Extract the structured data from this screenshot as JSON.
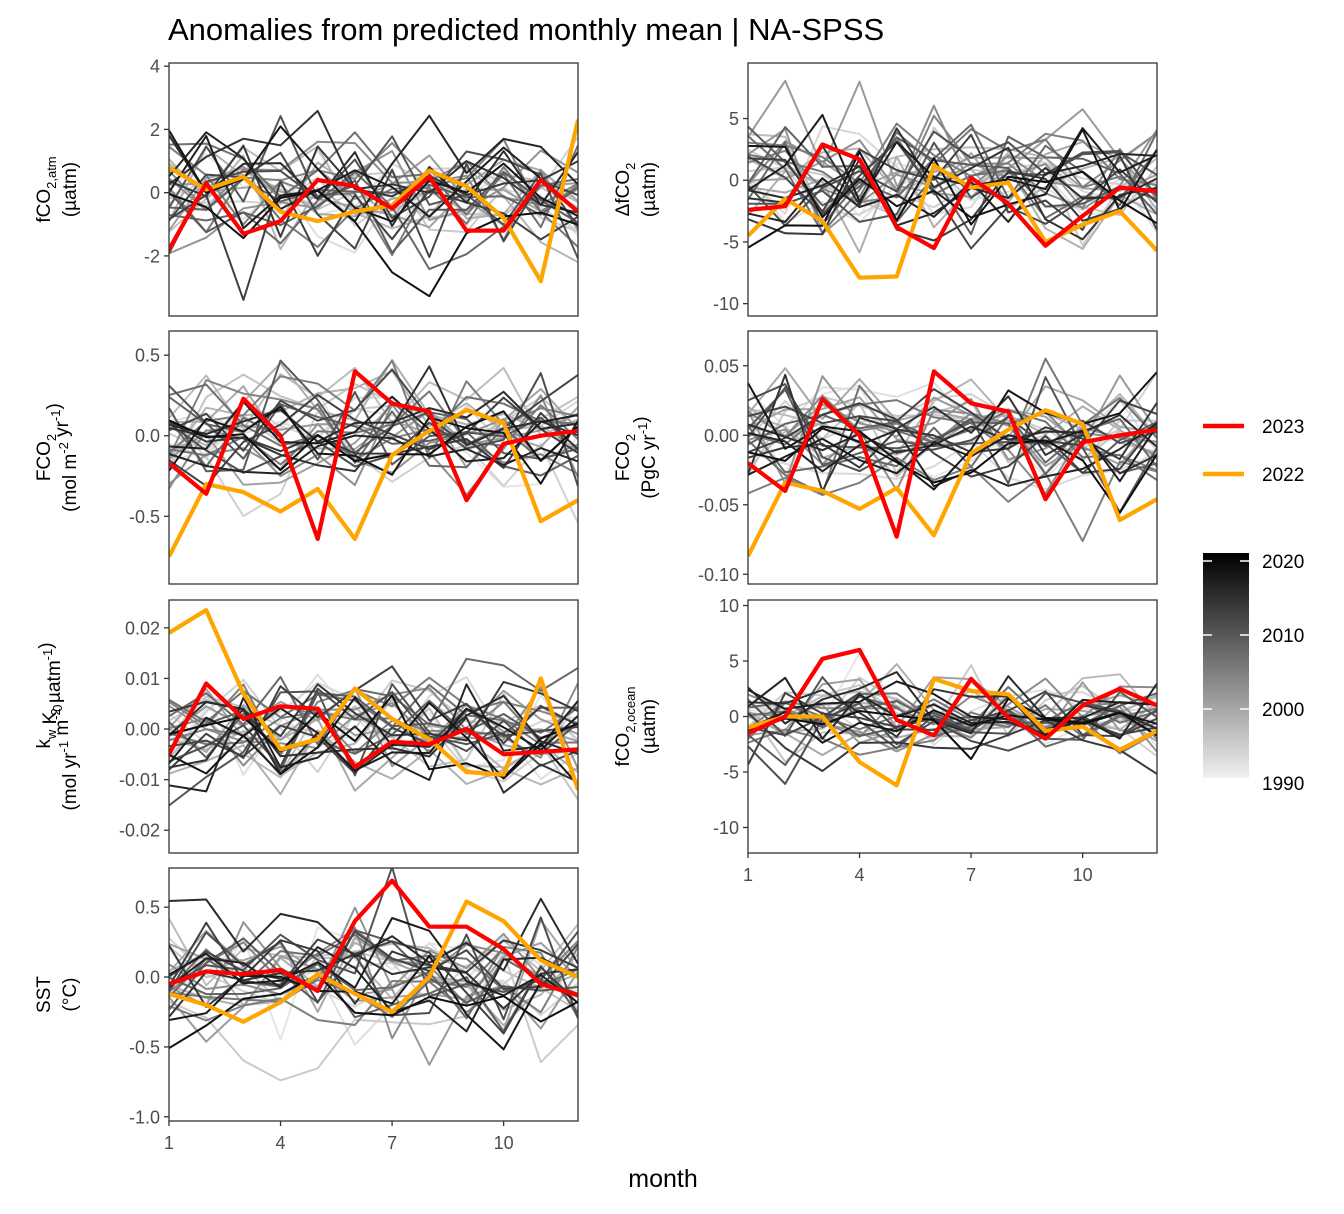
{
  "title": "Anomalies from predicted monthly mean | NA-SPSS",
  "x_axis_label": "month",
  "x_ticks": [
    1,
    4,
    7,
    10
  ],
  "legend": {
    "highlight": [
      {
        "label": "2023",
        "color": "#ff0000"
      },
      {
        "label": "2022",
        "color": "#ffa500"
      }
    ],
    "colorbar": {
      "ticks": [
        "2020",
        "2010",
        "2000",
        "1990"
      ],
      "color_low": "#f0f0f0",
      "color_high": "#000000"
    }
  },
  "chart_data": [
    {
      "type": "line",
      "panel": "fco2-atm",
      "ylabel_lines": [
        [
          "fCO",
          "2,atm",
          ""
        ],
        [
          "(µatm)",
          "",
          ""
        ]
      ],
      "ylim": [
        -3.9,
        4.1
      ],
      "yticks": [
        {
          "v": 4,
          "t": "4"
        },
        {
          "v": 2,
          "t": "2"
        },
        {
          "v": 0,
          "t": "0"
        },
        {
          "v": -2,
          "t": "-2"
        }
      ],
      "x": [
        1,
        2,
        3,
        4,
        5,
        6,
        7,
        8,
        9,
        10,
        11,
        12
      ],
      "series": [
        {
          "name": "2023",
          "values": [
            -1.8,
            0.3,
            -1.3,
            -0.9,
            0.4,
            0.2,
            -0.5,
            0.5,
            -1.2,
            -1.2,
            0.4,
            -0.6
          ]
        },
        {
          "name": "2022",
          "values": [
            0.8,
            0.1,
            0.5,
            -0.6,
            -0.9,
            -0.6,
            -0.4,
            0.7,
            0.2,
            -0.8,
            -2.8,
            2.3
          ]
        }
      ],
      "background_amplitude": 1.1
    },
    {
      "type": "line",
      "panel": "dfco2",
      "ylabel_lines": [
        [
          "ΔfCO",
          "",
          "2"
        ],
        [
          "(µatm)",
          "",
          ""
        ]
      ],
      "ylim": [
        -11.0,
        9.5
      ],
      "yticks": [
        {
          "v": 5,
          "t": "5"
        },
        {
          "v": 0,
          "t": "0"
        },
        {
          "v": -5,
          "t": "-5"
        },
        {
          "v": -10,
          "t": "-10"
        }
      ],
      "x": [
        1,
        2,
        3,
        4,
        5,
        6,
        7,
        8,
        9,
        10,
        11,
        12
      ],
      "series": [
        {
          "name": "2023",
          "values": [
            -2.4,
            -2.1,
            2.9,
            1.7,
            -3.8,
            -5.5,
            0.2,
            -1.9,
            -5.3,
            -2.9,
            -0.6,
            -0.9
          ]
        },
        {
          "name": "2022",
          "values": [
            -4.5,
            -1.5,
            -3.3,
            -7.9,
            -7.8,
            1.2,
            -0.6,
            -0.2,
            -5.0,
            -3.6,
            -2.5,
            -5.7
          ]
        }
      ],
      "background_amplitude": 3.0
    },
    {
      "type": "line",
      "panel": "fco2-flux-area",
      "ylabel_lines": [
        [
          "FCO",
          "",
          "2"
        ],
        [
          "(mol m",
          "",
          "-2"
        ],
        [
          "yr",
          "",
          "-1"
        ]
      ],
      "ylim": [
        -0.92,
        0.65
      ],
      "yticks": [
        {
          "v": 0.5,
          "t": "0.5"
        },
        {
          "v": 0.0,
          "t": "0.0"
        },
        {
          "v": -0.5,
          "t": "-0.5"
        }
      ],
      "x": [
        1,
        2,
        3,
        4,
        5,
        6,
        7,
        8,
        9,
        10,
        11,
        12
      ],
      "series": [
        {
          "name": "2023",
          "values": [
            -0.17,
            -0.36,
            0.23,
            0.0,
            -0.64,
            0.4,
            0.2,
            0.15,
            -0.4,
            -0.05,
            0.0,
            0.03
          ]
        },
        {
          "name": "2022",
          "values": [
            -0.75,
            -0.3,
            -0.35,
            -0.47,
            -0.33,
            -0.64,
            -0.12,
            0.03,
            0.16,
            0.08,
            -0.53,
            -0.4
          ]
        }
      ],
      "background_amplitude": 0.2
    },
    {
      "type": "line",
      "panel": "fco2-flux-total",
      "ylabel_lines": [
        [
          "FCO",
          "",
          "2"
        ],
        [
          "(PgC yr",
          "",
          "-1"
        ]
      ],
      "ylim": [
        -0.107,
        0.075
      ],
      "yticks": [
        {
          "v": 0.05,
          "t": "0.05"
        },
        {
          "v": 0.0,
          "t": "0.00"
        },
        {
          "v": -0.05,
          "t": "-0.05"
        },
        {
          "v": -0.1,
          "t": "-0.10"
        }
      ],
      "x": [
        1,
        2,
        3,
        4,
        5,
        6,
        7,
        8,
        9,
        10,
        11,
        12
      ],
      "series": [
        {
          "name": "2023",
          "values": [
            -0.02,
            -0.04,
            0.026,
            0.0,
            -0.073,
            0.046,
            0.023,
            0.017,
            -0.046,
            -0.005,
            0.0,
            0.004
          ]
        },
        {
          "name": "2022",
          "values": [
            -0.087,
            -0.034,
            -0.04,
            -0.053,
            -0.038,
            -0.072,
            -0.013,
            0.004,
            0.018,
            0.008,
            -0.061,
            -0.046
          ]
        }
      ],
      "background_amplitude": 0.023
    },
    {
      "type": "line",
      "panel": "kw-k0",
      "ylabel_lines": [
        [
          "k",
          "w",
          ""
        ],
        [
          "K",
          "0",
          ""
        ],
        [
          "(mol yr",
          "",
          "-1"
        ],
        [
          "m",
          "",
          "-2"
        ],
        [
          "µatm",
          "",
          "-1"
        ]
      ],
      "ylim": [
        -0.0245,
        0.0255
      ],
      "yticks": [
        {
          "v": 0.02,
          "t": "0.02"
        },
        {
          "v": 0.01,
          "t": "0.01"
        },
        {
          "v": 0.0,
          "t": "0.00"
        },
        {
          "v": -0.01,
          "t": "-0.01"
        },
        {
          "v": -0.02,
          "t": "-0.02"
        }
      ],
      "x": [
        1,
        2,
        3,
        4,
        5,
        6,
        7,
        8,
        9,
        10,
        11,
        12
      ],
      "series": [
        {
          "name": "2023",
          "values": [
            -0.005,
            0.009,
            0.002,
            0.0045,
            0.004,
            -0.0075,
            -0.0025,
            -0.003,
            0.0,
            -0.005,
            -0.0045,
            -0.004
          ]
        },
        {
          "name": "2022",
          "values": [
            0.019,
            0.0235,
            0.007,
            -0.004,
            -0.002,
            0.008,
            0.002,
            -0.002,
            -0.0085,
            -0.009,
            0.01,
            -0.012
          ]
        }
      ],
      "background_amplitude": 0.0065
    },
    {
      "type": "line",
      "panel": "fco2-ocean",
      "ylabel_lines": [
        [
          "fCO",
          "2,ocean",
          ""
        ],
        [
          "(µatm)",
          "",
          ""
        ]
      ],
      "ylim": [
        -12.3,
        10.5
      ],
      "yticks": [
        {
          "v": 10,
          "t": "10"
        },
        {
          "v": 5,
          "t": "5"
        },
        {
          "v": 0,
          "t": "0"
        },
        {
          "v": -5,
          "t": "-5"
        },
        {
          "v": -10,
          "t": "-10"
        }
      ],
      "x": [
        1,
        2,
        3,
        4,
        5,
        6,
        7,
        8,
        9,
        10,
        11,
        12
      ],
      "series": [
        {
          "name": "2023",
          "values": [
            -1.5,
            0.0,
            5.2,
            6.0,
            -0.3,
            -1.7,
            3.4,
            -0.1,
            -2.0,
            1.0,
            2.5,
            1.0
          ]
        },
        {
          "name": "2022",
          "values": [
            -1.0,
            0.0,
            0.0,
            -4.1,
            -6.2,
            3.4,
            2.3,
            2.0,
            -1.3,
            -0.9,
            -3.0,
            -1.3
          ]
        }
      ],
      "background_amplitude": 2.0
    },
    {
      "type": "line",
      "panel": "sst",
      "ylabel_lines": [
        [
          "SST",
          "",
          ""
        ],
        [
          "(°C)",
          "",
          ""
        ]
      ],
      "ylim": [
        -1.03,
        0.78
      ],
      "yticks": [
        {
          "v": 0.5,
          "t": "0.5"
        },
        {
          "v": 0.0,
          "t": "0.0"
        },
        {
          "v": -0.5,
          "t": "-0.5"
        },
        {
          "v": -1.0,
          "t": "-1.0"
        }
      ],
      "x": [
        1,
        2,
        3,
        4,
        5,
        6,
        7,
        8,
        9,
        10,
        11,
        12
      ],
      "series": [
        {
          "name": "2023",
          "values": [
            -0.05,
            0.04,
            0.02,
            0.05,
            -0.1,
            0.4,
            0.69,
            0.36,
            0.36,
            0.2,
            -0.05,
            -0.13
          ]
        },
        {
          "name": "2022",
          "values": [
            -0.12,
            -0.2,
            -0.32,
            -0.18,
            0.02,
            -0.12,
            -0.25,
            0.0,
            0.54,
            0.4,
            0.12,
            0.0
          ]
        }
      ],
      "background_amplitude": 0.24
    }
  ]
}
